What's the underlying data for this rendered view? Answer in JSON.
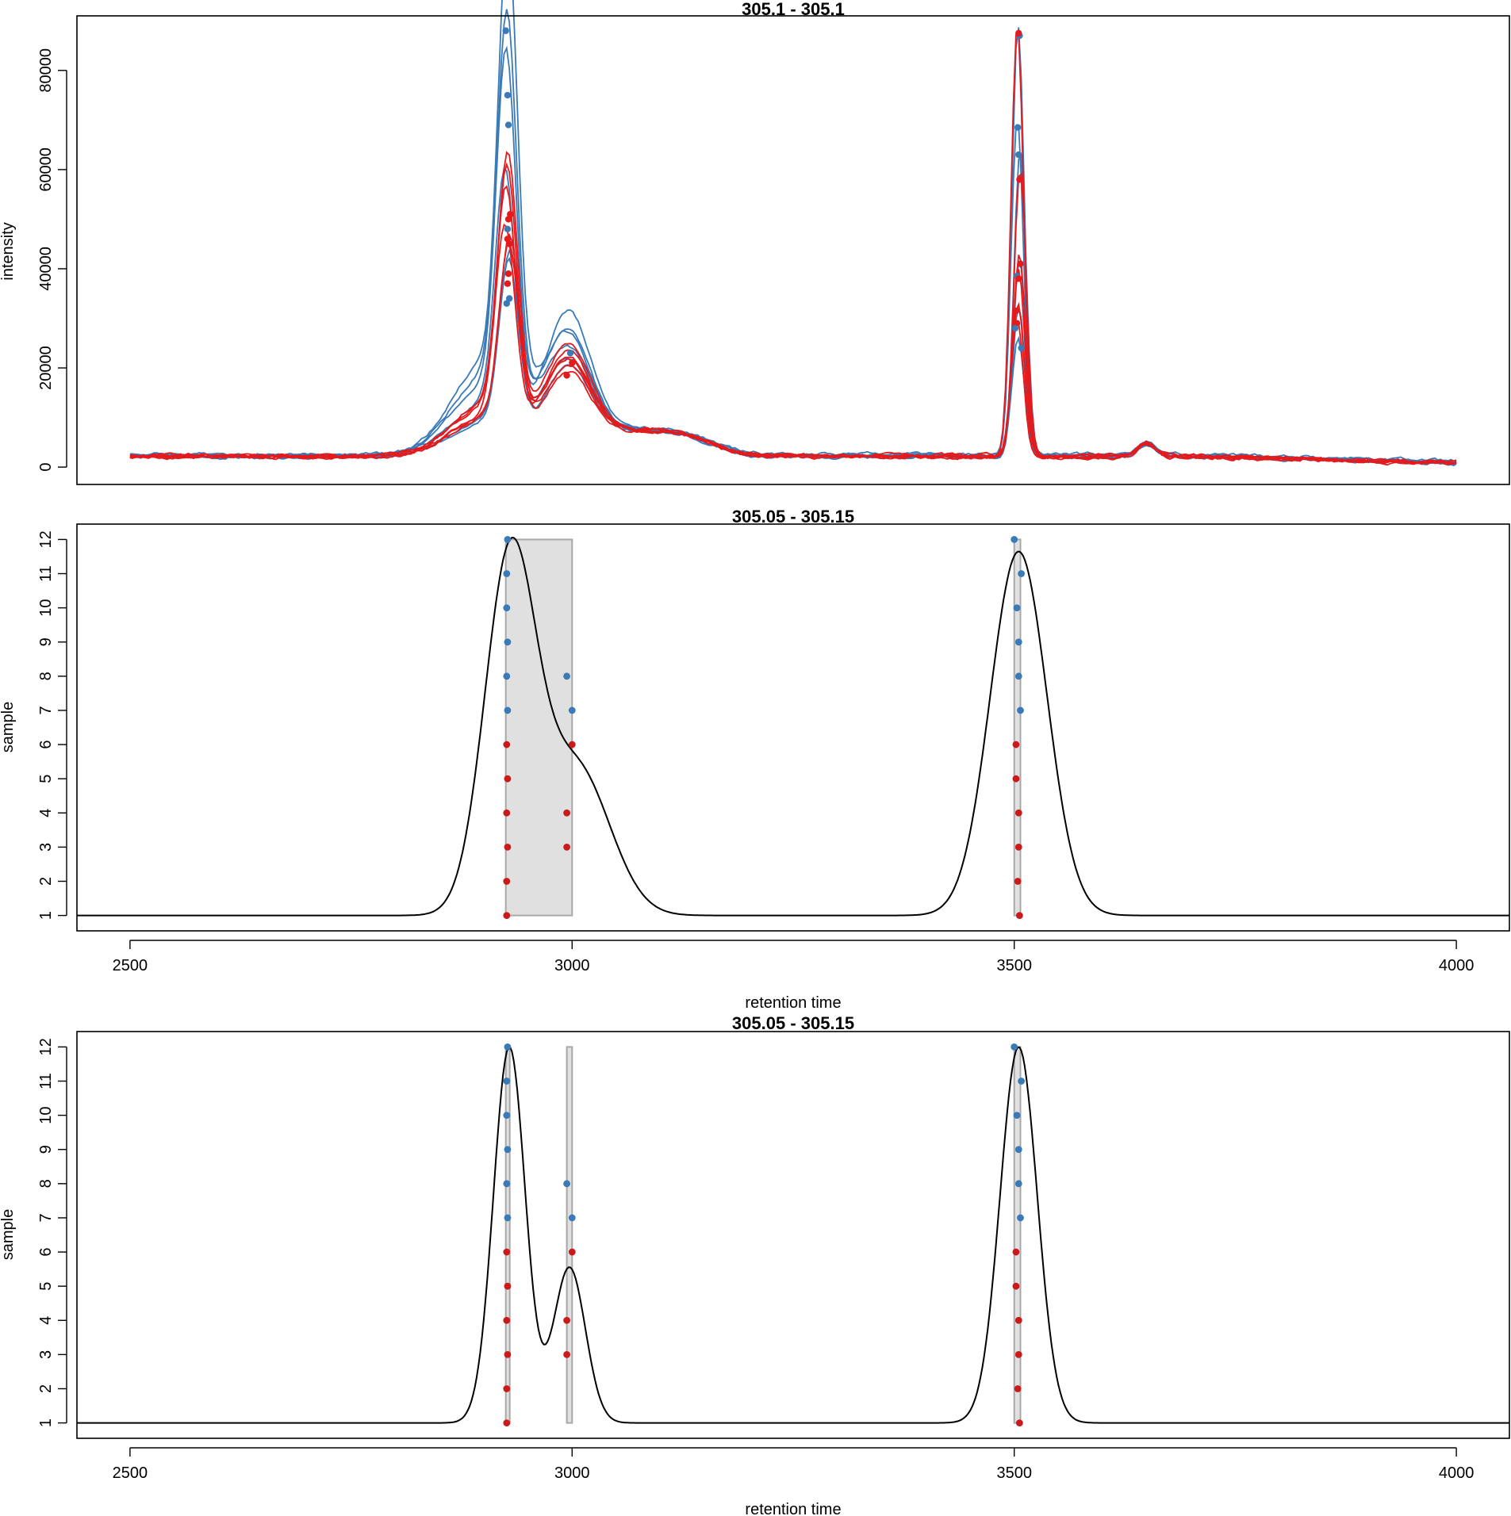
{
  "colors": {
    "blue": "#3a7ab7",
    "red": "#e41a1c",
    "red_point": "#cc1a1a",
    "group_fill": "#e0e0e0",
    "group_stroke": "#a8a8a8",
    "density": "#000000"
  },
  "chart_data": [
    {
      "type": "line",
      "title": "305.1 - 305.1",
      "xlabel": "",
      "ylabel": "intensity",
      "xlim": [
        2440,
        4060
      ],
      "ylim": [
        -3500,
        91000
      ],
      "yticks": [
        0,
        20000,
        40000,
        60000,
        80000
      ],
      "ytick_labels": [
        "0",
        "20000",
        "40000",
        "60000",
        "80000"
      ],
      "base_curves": [
        {
          "color": "blue",
          "peak1": 88000,
          "peak2": 87000,
          "shoulder": 22000,
          "baseline": 2200,
          "seed": 1
        },
        {
          "color": "blue",
          "peak1": 75000,
          "peak2": 68000,
          "shoulder": 19000,
          "baseline": 2400,
          "seed": 2
        },
        {
          "color": "blue",
          "peak1": 69000,
          "peak2": 62000,
          "shoulder": 23000,
          "baseline": 2000,
          "seed": 3
        },
        {
          "color": "blue",
          "peak1": 48000,
          "peak2": 39000,
          "shoulder": 17000,
          "baseline": 2600,
          "seed": 4
        },
        {
          "color": "blue",
          "peak1": 34000,
          "peak2": 30000,
          "shoulder": 27000,
          "baseline": 2300,
          "seed": 5
        },
        {
          "color": "blue",
          "peak1": 33000,
          "peak2": 24000,
          "shoulder": 16000,
          "baseline": 2100,
          "seed": 6
        },
        {
          "color": "red",
          "peak1": 51000,
          "peak2": 87000,
          "shoulder": 20000,
          "baseline": 2200,
          "seed": 7
        },
        {
          "color": "red",
          "peak1": 49000,
          "peak2": 58000,
          "shoulder": 18000,
          "baseline": 2000,
          "seed": 8
        },
        {
          "color": "red",
          "peak1": 45000,
          "peak2": 41000,
          "shoulder": 17000,
          "baseline": 2400,
          "seed": 9
        },
        {
          "color": "red",
          "peak1": 39000,
          "peak2": 38000,
          "shoulder": 19000,
          "baseline": 2100,
          "seed": 10
        },
        {
          "color": "red",
          "peak1": 37000,
          "peak2": 31000,
          "shoulder": 16000,
          "baseline": 2300,
          "seed": 11
        },
        {
          "color": "red",
          "peak1": 36000,
          "peak2": 28000,
          "shoulder": 15000,
          "baseline": 2000,
          "seed": 12
        }
      ],
      "peak_points": [
        {
          "x": 2925,
          "y": 88000,
          "color": "blue"
        },
        {
          "x": 2927,
          "y": 75000,
          "color": "blue"
        },
        {
          "x": 2928,
          "y": 69000,
          "color": "blue"
        },
        {
          "x": 2927,
          "y": 48000,
          "color": "blue"
        },
        {
          "x": 2929,
          "y": 34000,
          "color": "blue"
        },
        {
          "x": 2926,
          "y": 33000,
          "color": "blue"
        },
        {
          "x": 2930,
          "y": 51000,
          "color": "red"
        },
        {
          "x": 2928,
          "y": 50000,
          "color": "red"
        },
        {
          "x": 2927,
          "y": 46000,
          "color": "red"
        },
        {
          "x": 2929,
          "y": 45000,
          "color": "red"
        },
        {
          "x": 2928,
          "y": 39000,
          "color": "red"
        },
        {
          "x": 2927,
          "y": 37000,
          "color": "red"
        },
        {
          "x": 2998,
          "y": 23000,
          "color": "blue"
        },
        {
          "x": 3000,
          "y": 21000,
          "color": "red"
        },
        {
          "x": 2994,
          "y": 18500,
          "color": "red"
        },
        {
          "x": 3506,
          "y": 87000,
          "color": "blue"
        },
        {
          "x": 3504,
          "y": 68500,
          "color": "blue"
        },
        {
          "x": 3505,
          "y": 63000,
          "color": "blue"
        },
        {
          "x": 3506,
          "y": 58000,
          "color": "red"
        },
        {
          "x": 3505,
          "y": 87500,
          "color": "red"
        },
        {
          "x": 3507,
          "y": 41000,
          "color": "red"
        },
        {
          "x": 3503,
          "y": 38500,
          "color": "blue"
        },
        {
          "x": 3505,
          "y": 38000,
          "color": "red"
        },
        {
          "x": 3502,
          "y": 31500,
          "color": "red"
        },
        {
          "x": 3503,
          "y": 29000,
          "color": "red"
        },
        {
          "x": 3501,
          "y": 28000,
          "color": "blue"
        },
        {
          "x": 3508,
          "y": 24000,
          "color": "blue"
        }
      ]
    },
    {
      "type": "scatter",
      "title": "305.05 - 305.15",
      "xlabel": "retention time",
      "ylabel": "sample",
      "xlim": [
        2440,
        4060
      ],
      "ylim": [
        0.55,
        12.45
      ],
      "xticks": [
        2500,
        3000,
        3500,
        4000
      ],
      "xtick_labels": [
        "2500",
        "3000",
        "3500",
        "4000"
      ],
      "yticks": [
        1,
        2,
        3,
        4,
        5,
        6,
        7,
        8,
        9,
        10,
        11,
        12
      ],
      "ytick_labels": [
        "1",
        "2",
        "3",
        "4",
        "5",
        "6",
        "7",
        "8",
        "9",
        "10",
        "11",
        "12"
      ],
      "density": {
        "baseline": 1,
        "components": [
          {
            "mu": 2930,
            "sigma": 29,
            "amp": 10.4
          },
          {
            "mu": 3005,
            "sigma": 38,
            "amp": 4.3
          },
          {
            "mu": 3505,
            "sigma": 32,
            "amp": 10.65
          }
        ]
      },
      "groups": [
        {
          "x0": 2925,
          "x1": 3000,
          "y0": 1,
          "y1": 12
        },
        {
          "x0": 3500,
          "x1": 3507,
          "y0": 1,
          "y1": 12
        }
      ],
      "points": [
        {
          "x": 2927,
          "y": 12,
          "color": "blue"
        },
        {
          "x": 2926,
          "y": 11,
          "color": "blue"
        },
        {
          "x": 2926,
          "y": 10,
          "color": "blue"
        },
        {
          "x": 2927,
          "y": 9,
          "color": "blue"
        },
        {
          "x": 2926,
          "y": 8,
          "color": "blue"
        },
        {
          "x": 2927,
          "y": 7,
          "color": "blue"
        },
        {
          "x": 2926,
          "y": 6,
          "color": "red"
        },
        {
          "x": 2927,
          "y": 5,
          "color": "red"
        },
        {
          "x": 2926,
          "y": 4,
          "color": "red"
        },
        {
          "x": 2927,
          "y": 3,
          "color": "red"
        },
        {
          "x": 2926,
          "y": 2,
          "color": "red"
        },
        {
          "x": 2926,
          "y": 1,
          "color": "red"
        },
        {
          "x": 2994,
          "y": 8,
          "color": "blue"
        },
        {
          "x": 3000,
          "y": 7,
          "color": "blue"
        },
        {
          "x": 3000,
          "y": 6,
          "color": "red"
        },
        {
          "x": 2994,
          "y": 4,
          "color": "red"
        },
        {
          "x": 2994,
          "y": 3,
          "color": "red"
        },
        {
          "x": 3500,
          "y": 12,
          "color": "blue"
        },
        {
          "x": 3508,
          "y": 11,
          "color": "blue"
        },
        {
          "x": 3503,
          "y": 10,
          "color": "blue"
        },
        {
          "x": 3505,
          "y": 9,
          "color": "blue"
        },
        {
          "x": 3505,
          "y": 8,
          "color": "blue"
        },
        {
          "x": 3507,
          "y": 7,
          "color": "blue"
        },
        {
          "x": 3502,
          "y": 6,
          "color": "red"
        },
        {
          "x": 3502,
          "y": 5,
          "color": "red"
        },
        {
          "x": 3505,
          "y": 4,
          "color": "red"
        },
        {
          "x": 3505,
          "y": 3,
          "color": "red"
        },
        {
          "x": 3504,
          "y": 2,
          "color": "red"
        },
        {
          "x": 3506,
          "y": 1,
          "color": "red"
        }
      ]
    },
    {
      "type": "scatter",
      "title": "305.05 - 305.15",
      "xlabel": "retention time",
      "ylabel": "sample",
      "xlim": [
        2440,
        4060
      ],
      "ylim": [
        0.55,
        12.45
      ],
      "xticks": [
        2500,
        3000,
        3500,
        4000
      ],
      "xtick_labels": [
        "2500",
        "3000",
        "3500",
        "4000"
      ],
      "yticks": [
        1,
        2,
        3,
        4,
        5,
        6,
        7,
        8,
        9,
        10,
        11,
        12
      ],
      "ytick_labels": [
        "1",
        "2",
        "3",
        "4",
        "5",
        "6",
        "7",
        "8",
        "9",
        "10",
        "11",
        "12"
      ],
      "density": {
        "baseline": 1,
        "components": [
          {
            "mu": 2929,
            "sigma": 18,
            "amp": 11
          },
          {
            "mu": 2997,
            "sigma": 18,
            "amp": 4.55
          },
          {
            "mu": 3505,
            "sigma": 21,
            "amp": 11
          }
        ]
      },
      "groups": [
        {
          "x0": 2925,
          "x1": 2929,
          "y0": 1,
          "y1": 12
        },
        {
          "x0": 2994,
          "x1": 3000,
          "y0": 1,
          "y1": 12
        },
        {
          "x0": 3500,
          "x1": 3507,
          "y0": 1,
          "y1": 12
        }
      ],
      "points": [
        {
          "x": 2927,
          "y": 12,
          "color": "blue"
        },
        {
          "x": 2926,
          "y": 11,
          "color": "blue"
        },
        {
          "x": 2926,
          "y": 10,
          "color": "blue"
        },
        {
          "x": 2927,
          "y": 9,
          "color": "blue"
        },
        {
          "x": 2926,
          "y": 8,
          "color": "blue"
        },
        {
          "x": 2927,
          "y": 7,
          "color": "blue"
        },
        {
          "x": 2926,
          "y": 6,
          "color": "red"
        },
        {
          "x": 2927,
          "y": 5,
          "color": "red"
        },
        {
          "x": 2926,
          "y": 4,
          "color": "red"
        },
        {
          "x": 2927,
          "y": 3,
          "color": "red"
        },
        {
          "x": 2926,
          "y": 2,
          "color": "red"
        },
        {
          "x": 2926,
          "y": 1,
          "color": "red"
        },
        {
          "x": 2994,
          "y": 8,
          "color": "blue"
        },
        {
          "x": 3000,
          "y": 7,
          "color": "blue"
        },
        {
          "x": 3000,
          "y": 6,
          "color": "red"
        },
        {
          "x": 2994,
          "y": 4,
          "color": "red"
        },
        {
          "x": 2994,
          "y": 3,
          "color": "red"
        },
        {
          "x": 3500,
          "y": 12,
          "color": "blue"
        },
        {
          "x": 3508,
          "y": 11,
          "color": "blue"
        },
        {
          "x": 3503,
          "y": 10,
          "color": "blue"
        },
        {
          "x": 3505,
          "y": 9,
          "color": "blue"
        },
        {
          "x": 3505,
          "y": 8,
          "color": "blue"
        },
        {
          "x": 3507,
          "y": 7,
          "color": "blue"
        },
        {
          "x": 3502,
          "y": 6,
          "color": "red"
        },
        {
          "x": 3502,
          "y": 5,
          "color": "red"
        },
        {
          "x": 3505,
          "y": 4,
          "color": "red"
        },
        {
          "x": 3505,
          "y": 3,
          "color": "red"
        },
        {
          "x": 3504,
          "y": 2,
          "color": "red"
        },
        {
          "x": 3506,
          "y": 1,
          "color": "red"
        }
      ]
    }
  ]
}
